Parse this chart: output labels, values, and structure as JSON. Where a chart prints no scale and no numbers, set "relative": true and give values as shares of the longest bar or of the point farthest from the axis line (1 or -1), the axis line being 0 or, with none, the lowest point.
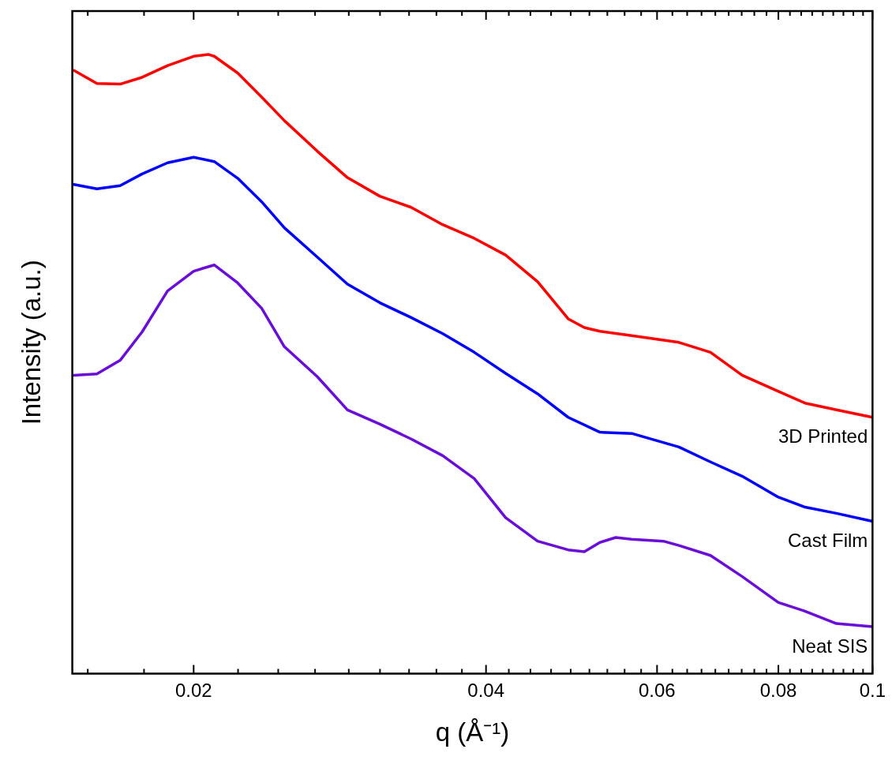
{
  "chart_data": {
    "type": "line",
    "xlabel": "q (Å⁻¹)",
    "ylabel": "Intensity (a.u.)",
    "relative": true,
    "log": "x",
    "grid": false,
    "legend": false,
    "marker": "none",
    "line_style": "solid",
    "xlim": [
      0.015,
      0.1
    ],
    "xticks": [
      {
        "value": 0.01556,
        "label": null
      },
      {
        "value": 0.01778,
        "label": null
      },
      0.02,
      {
        "value": 0.02222,
        "label": null
      },
      {
        "value": 0.02444,
        "label": null
      },
      {
        "value": 0.02667,
        "label": null
      },
      {
        "value": 0.02889,
        "label": null
      },
      {
        "value": 0.03111,
        "label": null
      },
      {
        "value": 0.03333,
        "label": null
      },
      {
        "value": 0.03556,
        "label": null
      },
      {
        "value": 0.03778,
        "label": null
      },
      0.04,
      {
        "value": 0.04222,
        "label": null
      },
      {
        "value": 0.04444,
        "label": null
      },
      {
        "value": 0.04667,
        "label": null
      },
      {
        "value": 0.04889,
        "label": null
      },
      {
        "value": 0.05111,
        "label": null
      },
      {
        "value": 0.05333,
        "label": null
      },
      {
        "value": 0.05556,
        "label": null
      },
      {
        "value": 0.05778,
        "label": null
      },
      0.06,
      {
        "value": 0.06222,
        "label": null
      },
      {
        "value": 0.06444,
        "label": null
      },
      {
        "value": 0.06667,
        "label": null
      },
      {
        "value": 0.06889,
        "label": null
      },
      {
        "value": 0.07111,
        "label": null
      },
      {
        "value": 0.07333,
        "label": null
      },
      {
        "value": 0.07556,
        "label": null
      },
      {
        "value": 0.07778,
        "label": null
      },
      0.08,
      {
        "value": 0.08222,
        "label": null
      },
      {
        "value": 0.08444,
        "label": null
      },
      {
        "value": 0.08667,
        "label": null
      },
      {
        "value": 0.08889,
        "label": null
      },
      {
        "value": 0.09111,
        "label": null
      },
      {
        "value": 0.09333,
        "label": null
      },
      {
        "value": 0.09556,
        "label": null
      },
      {
        "value": 0.09778,
        "label": null
      },
      0.1
    ],
    "series": [
      {
        "name": "3D Printed",
        "color": "#ff0000",
        "x": [
          0.01506,
          0.0159,
          0.0168,
          0.0177,
          0.0188,
          0.02,
          0.0207,
          0.021,
          0.0222,
          0.0235,
          0.0248,
          0.0268,
          0.0288,
          0.0311,
          0.0335,
          0.0361,
          0.0389,
          0.0419,
          0.0452,
          0.0486,
          0.0505,
          0.0524,
          0.0565,
          0.0632,
          0.0681,
          0.0734,
          0.08,
          0.0852,
          0.0918,
          0.1
        ],
        "values": [
          0.974,
          0.953,
          0.952,
          0.963,
          0.982,
          0.997,
          1.0,
          0.997,
          0.97,
          0.931,
          0.893,
          0.844,
          0.801,
          0.771,
          0.753,
          0.725,
          0.703,
          0.676,
          0.633,
          0.573,
          0.559,
          0.553,
          0.546,
          0.535,
          0.519,
          0.482,
          0.456,
          0.437,
          0.426,
          0.414
        ]
      },
      {
        "name": "Cast Film",
        "color": "#0000ff",
        "x": [
          0.01506,
          0.0159,
          0.0168,
          0.0177,
          0.0188,
          0.02,
          0.021,
          0.0222,
          0.0235,
          0.0248,
          0.0268,
          0.0288,
          0.0311,
          0.0335,
          0.0361,
          0.0389,
          0.0419,
          0.0452,
          0.0486,
          0.0524,
          0.0565,
          0.0632,
          0.0681,
          0.0734,
          0.08,
          0.0852,
          0.0918,
          0.1
        ],
        "values": [
          0.79,
          0.783,
          0.788,
          0.807,
          0.825,
          0.834,
          0.827,
          0.8,
          0.762,
          0.72,
          0.673,
          0.629,
          0.599,
          0.575,
          0.549,
          0.519,
          0.485,
          0.452,
          0.414,
          0.39,
          0.388,
          0.366,
          0.342,
          0.319,
          0.285,
          0.269,
          0.259,
          0.246
        ]
      },
      {
        "name": "Neat SIS",
        "color": "#6a0dd8",
        "x": [
          0.01506,
          0.0159,
          0.0168,
          0.0177,
          0.0188,
          0.02,
          0.021,
          0.0222,
          0.0235,
          0.0248,
          0.0268,
          0.0288,
          0.0311,
          0.0335,
          0.0361,
          0.0389,
          0.0419,
          0.0452,
          0.0486,
          0.0505,
          0.0524,
          0.0544,
          0.0565,
          0.0609,
          0.0632,
          0.0681,
          0.0734,
          0.08,
          0.0852,
          0.0918,
          0.1
        ],
        "values": [
          0.482,
          0.484,
          0.506,
          0.552,
          0.618,
          0.65,
          0.66,
          0.631,
          0.59,
          0.528,
          0.48,
          0.426,
          0.403,
          0.379,
          0.352,
          0.315,
          0.252,
          0.214,
          0.2,
          0.197,
          0.212,
          0.22,
          0.217,
          0.214,
          0.207,
          0.191,
          0.157,
          0.115,
          0.101,
          0.081,
          0.076
        ]
      }
    ]
  }
}
